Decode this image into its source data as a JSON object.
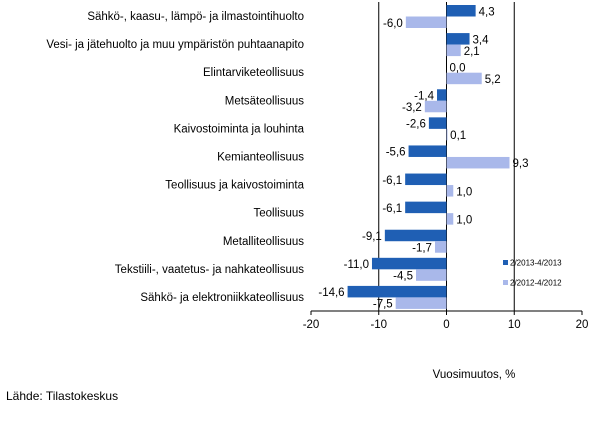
{
  "chart_data": {
    "type": "bar",
    "orientation": "horizontal",
    "categories": [
      "Sähkö-, kaasu-, lämpö- ja ilmastointihuolto",
      "Vesi- ja jätehuolto ja muu ympäristön puhtaanapito",
      "Elintarviketeollisuus",
      "Metsäteollisuus",
      "Kaivostoiminta ja louhinta",
      "Kemianteollisuus",
      "Teollisuus ja kaivostoiminta",
      "Teollisuus",
      "Metalliteollisuus",
      "Tekstiili-, vaatetus- ja nahkateollisuus",
      "Sähkö- ja elektroniikkateollisuus"
    ],
    "series": [
      {
        "name": "2/2013-4/2013",
        "color": "#1f5fb4",
        "values": [
          4.3,
          3.4,
          0.0,
          -1.4,
          -2.6,
          -5.6,
          -6.1,
          -6.1,
          -9.1,
          -11.0,
          -14.6
        ],
        "labels": [
          "4,3",
          "3,4",
          "0,0",
          "-1,4",
          "-2,6",
          "-5,6",
          "-6,1",
          "-6,1",
          "-9,1",
          "-11,0",
          "-14,6"
        ]
      },
      {
        "name": "2/2012-4/2012",
        "color": "#a9b8ea",
        "values": [
          -6.0,
          2.1,
          5.2,
          -3.2,
          0.1,
          9.3,
          1.0,
          1.0,
          -1.7,
          -4.5,
          -7.5
        ],
        "labels": [
          "-6,0",
          "2,1",
          "5,2",
          "-3,2",
          "0,1",
          "9,3",
          "1,0",
          "1,0",
          "-1,7",
          "-4,5",
          "-7,5"
        ]
      }
    ],
    "xlim": [
      -20,
      20
    ],
    "xticks": [
      -20,
      -10,
      0,
      10,
      20
    ],
    "xtick_labels": [
      "-20",
      "-10",
      "0",
      "10",
      "20"
    ],
    "xlabel": "Vuosimuutos, %",
    "legend_position": "right",
    "grid": "vertical lines at -10, 0, 10"
  },
  "source": "Lähde: Tilastokeskus"
}
